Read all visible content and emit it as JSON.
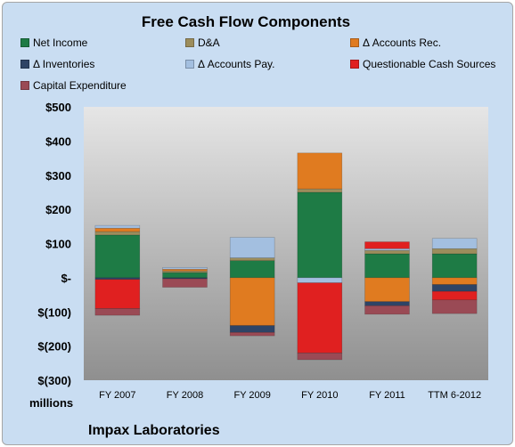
{
  "chart_data": {
    "type": "bar",
    "stacked": true,
    "title": "Free Cash Flow Components",
    "unit_label": "millions",
    "company": "Impax Laboratories",
    "ylim": [
      -300,
      500
    ],
    "y_ticks": [
      500,
      400,
      300,
      200,
      100,
      0,
      -100,
      -200,
      -300
    ],
    "y_tick_labels": [
      "$500",
      "$400",
      "$300",
      "$200",
      "$100",
      "$-",
      "$(100)",
      "$(200)",
      "$(300)"
    ],
    "categories": [
      "FY 2007",
      "FY 2008",
      "FY 2009",
      "FY 2010",
      "FY 2011",
      "TTM 6-2012"
    ],
    "grid": false,
    "legend_position": "top",
    "series": [
      {
        "name": "Net Income",
        "color": "#1e7b45",
        "values": [
          125,
          15,
          50,
          250,
          70,
          70
        ]
      },
      {
        "name": "D&A",
        "color": "#9c8d5c",
        "values": [
          10,
          5,
          8,
          10,
          10,
          15
        ]
      },
      {
        "name": "Δ Accounts Rec.",
        "color": "#e07b20",
        "values": [
          10,
          5,
          -140,
          105,
          -70,
          -20
        ]
      },
      {
        "name": "Δ Inventories",
        "color": "#2e4466",
        "values": [
          -5,
          -3,
          -20,
          0,
          -12,
          -20
        ]
      },
      {
        "name": "Δ Accounts Pay.",
        "color": "#a3bfe0",
        "values": [
          8,
          5,
          60,
          -15,
          5,
          30
        ]
      },
      {
        "name": "Questionable Cash Sources",
        "color": "#e02020",
        "values": [
          -85,
          0,
          0,
          -205,
          20,
          -25
        ]
      },
      {
        "name": "Capital Expenditure",
        "color": "#9a4a55",
        "values": [
          -20,
          -25,
          -10,
          -20,
          -25,
          -40
        ]
      }
    ]
  }
}
